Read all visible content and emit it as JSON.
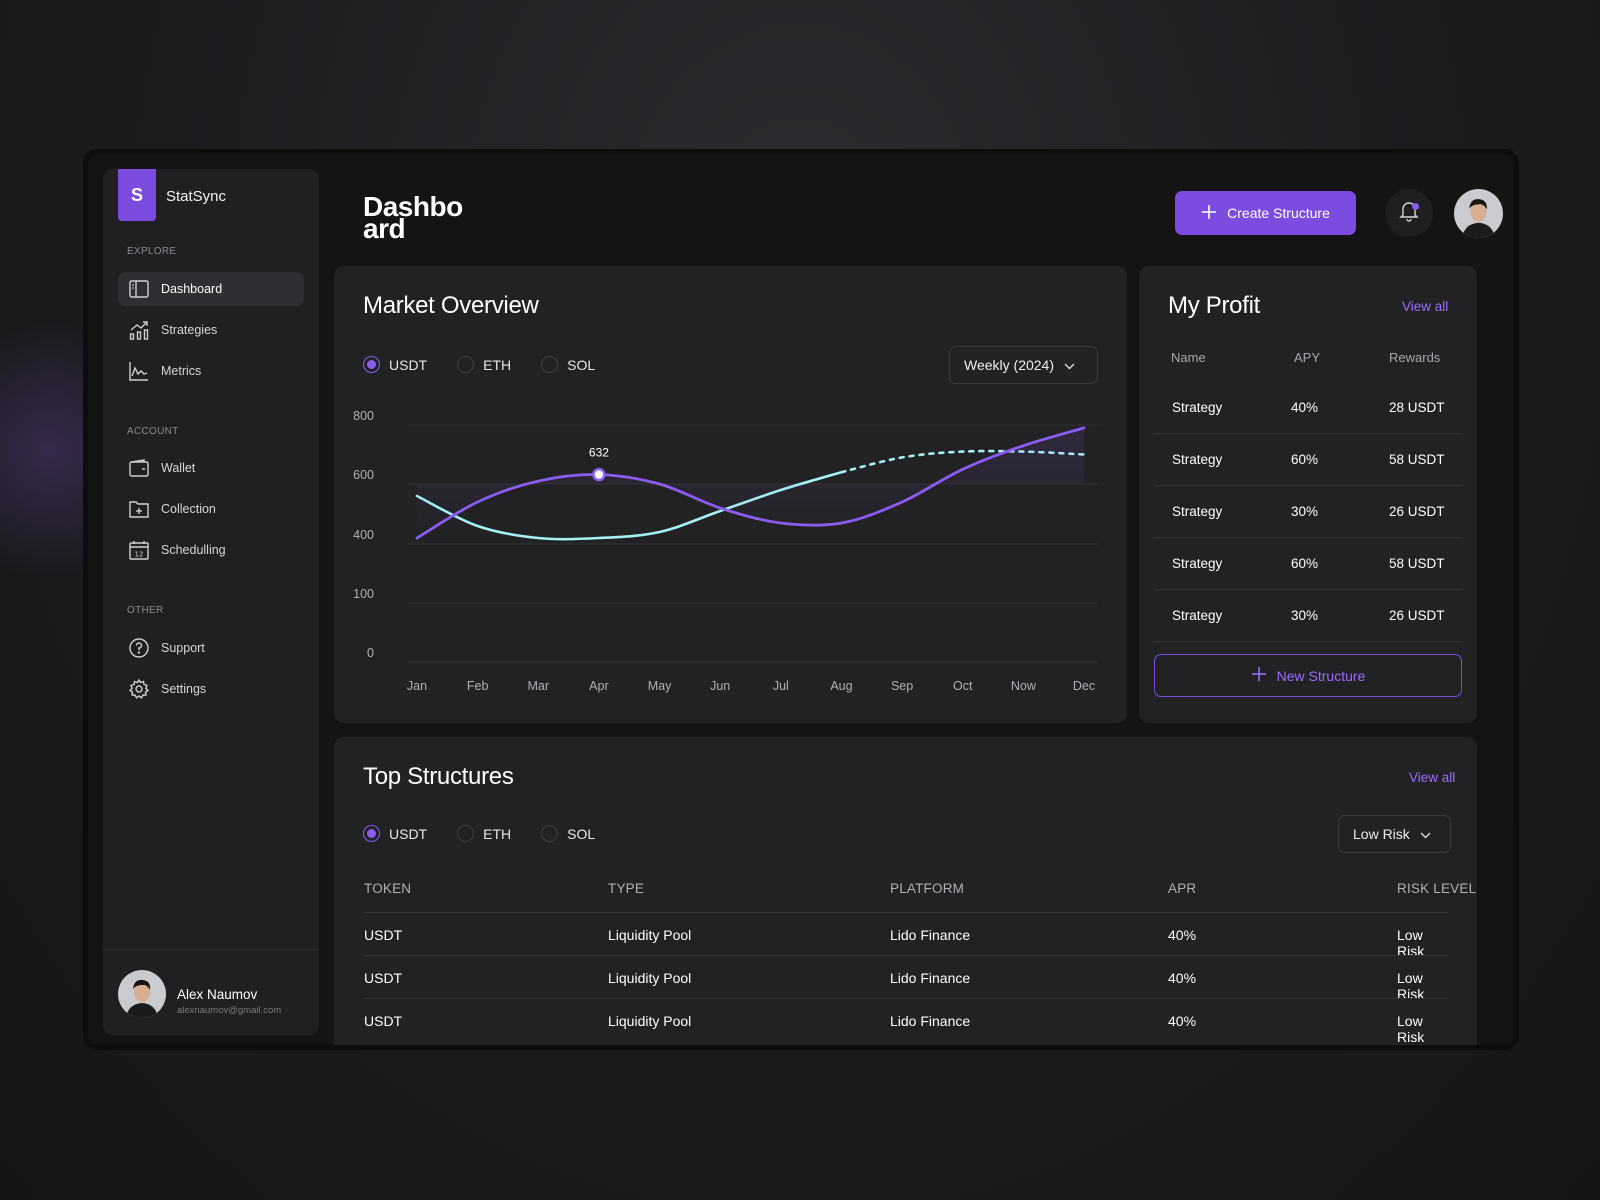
{
  "sidebar": {
    "logo_letter": "S",
    "brand": "StatSync",
    "sections": {
      "explore": "EXPLORE",
      "account": "ACCOUNT",
      "other": "OTHER"
    },
    "items": [
      {
        "label": "Dashboard",
        "icon": "dashboard-icon",
        "active": true
      },
      {
        "label": "Strategies",
        "icon": "chart-up-icon"
      },
      {
        "label": "Metrics",
        "icon": "pulse-icon"
      },
      {
        "label": "Wallet",
        "icon": "wallet-icon"
      },
      {
        "label": "Collection",
        "icon": "folder-plus-icon"
      },
      {
        "label": "Schedulling",
        "icon": "calendar-icon"
      },
      {
        "label": "Support",
        "icon": "help-icon"
      },
      {
        "label": "Settings",
        "icon": "gear-icon"
      }
    ],
    "user": {
      "name": "Alex Naumov",
      "email": "alexnaumov@gmail.com"
    }
  },
  "header": {
    "title": "Dashboard",
    "create_label": "Create Structure"
  },
  "market": {
    "title": "Market Overview",
    "tokens": [
      "USDT",
      "ETH",
      "SOL"
    ],
    "selected_token": "USDT",
    "period": "Weekly (2024)",
    "tooltip": "632"
  },
  "chart_data": {
    "type": "line",
    "title": "Market Overview",
    "categories": [
      "Jan",
      "Feb",
      "Mar",
      "Apr",
      "May",
      "Jun",
      "Jul",
      "Aug",
      "Sep",
      "Oct",
      "Now",
      "Dec"
    ],
    "y_ticks": [
      "800",
      "600",
      "400",
      "100",
      "0"
    ],
    "series": [
      {
        "name": "USDT",
        "color": "#8a5cf0",
        "values": [
          420,
          540,
          610,
          632,
          600,
          520,
          470,
          470,
          540,
          650,
          730,
          790
        ]
      },
      {
        "name": "",
        "color": "#a6f0f4",
        "values": [
          560,
          460,
          420,
          420,
          440,
          510,
          580,
          640,
          690,
          710,
          710,
          700
        ],
        "solid_until_index": 6
      }
    ],
    "highlight": {
      "category": "Apr",
      "value": 632
    },
    "grid": true
  },
  "profit": {
    "title": "My Profit",
    "view_all": "View all",
    "headers": [
      "Name",
      "APY",
      "Rewards"
    ],
    "rows": [
      [
        "Strategy",
        "40%",
        "28 USDT"
      ],
      [
        "Strategy",
        "60%",
        "58 USDT"
      ],
      [
        "Strategy",
        "30%",
        "26 USDT"
      ],
      [
        "Strategy",
        "60%",
        "58 USDT"
      ],
      [
        "Strategy",
        "30%",
        "26 USDT"
      ]
    ],
    "new_label": "New Structure"
  },
  "structures": {
    "title": "Top Structures",
    "view_all": "View all",
    "tokens": [
      "USDT",
      "ETH",
      "SOL"
    ],
    "selected_token": "USDT",
    "risk_filter": "Low Risk",
    "headers": [
      "TOKEN",
      "TYPE",
      "PLATFORM",
      "APR",
      "RISK LEVEL"
    ],
    "rows": [
      [
        "USDT",
        "Liquidity Pool",
        "Lido Finance",
        "40%",
        "Low Risk"
      ],
      [
        "USDT",
        "Liquidity Pool",
        "Lido Finance",
        "40%",
        "Low Risk"
      ],
      [
        "USDT",
        "Liquidity Pool",
        "Lido Finance",
        "40%",
        "Low Risk"
      ]
    ]
  },
  "colors": {
    "accent": "#7c4ce0",
    "accent_light": "#9b6bff",
    "line_secondary": "#a6f0f4"
  }
}
